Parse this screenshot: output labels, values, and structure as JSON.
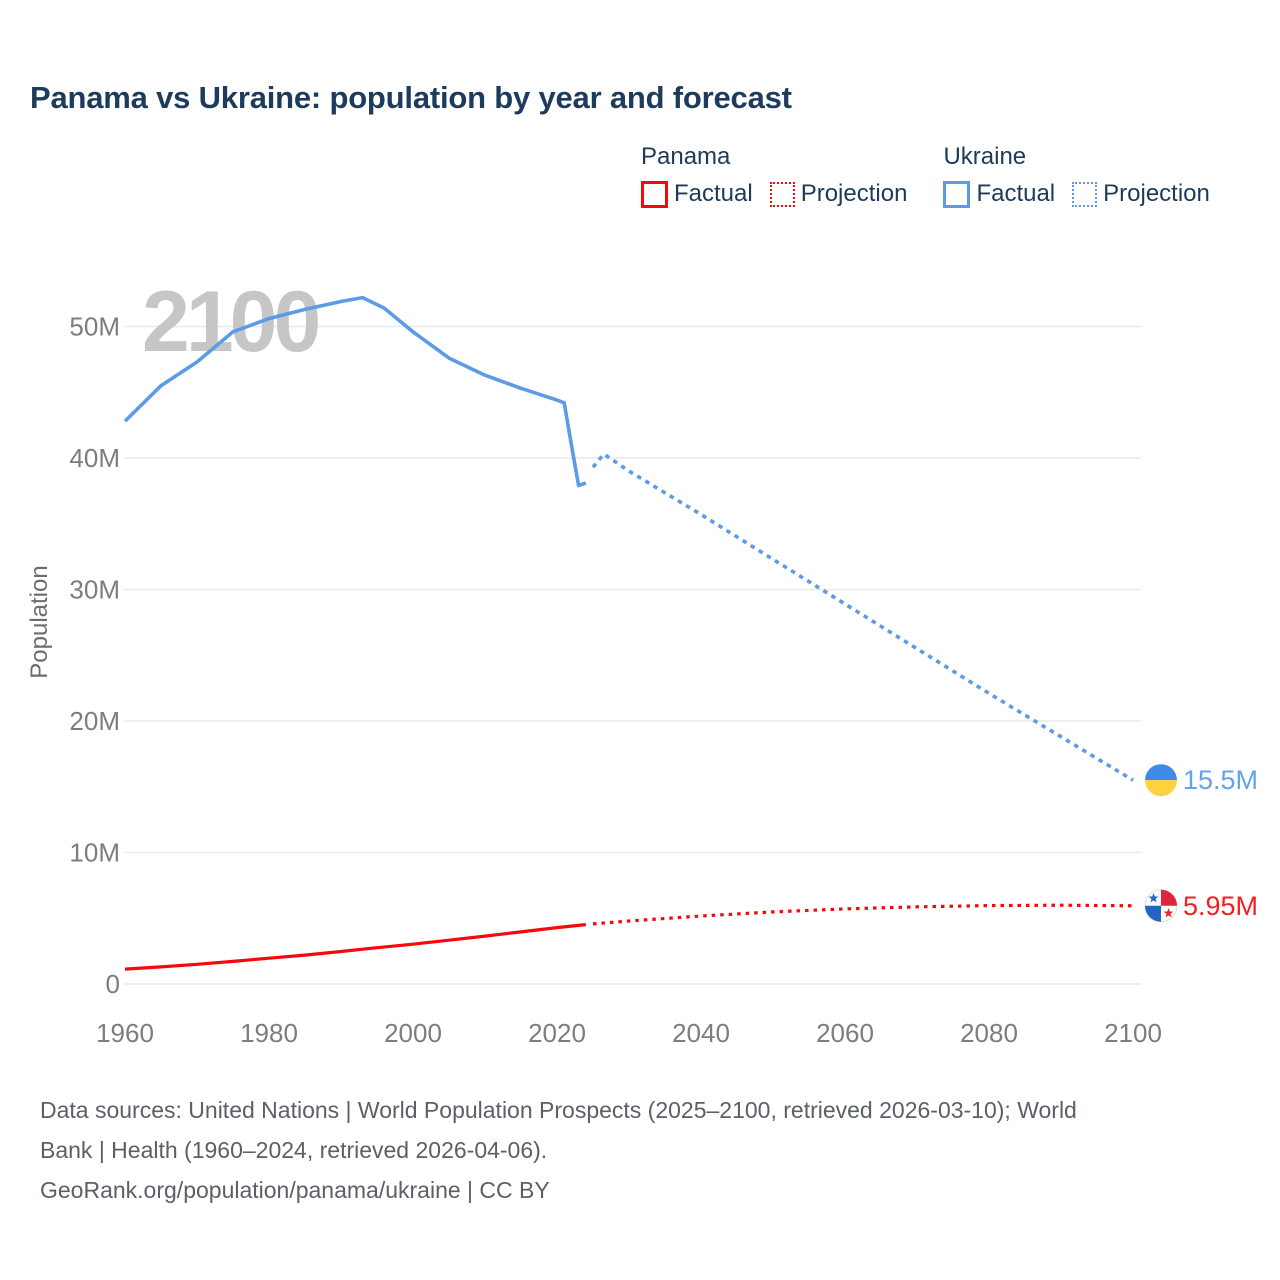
{
  "title": "Panama vs Ukraine: population by year and forecast",
  "legend": {
    "groups": [
      {
        "name": "Panama",
        "color": "#f40a0a",
        "items": [
          {
            "label": "Factual",
            "style": "solid"
          },
          {
            "label": "Projection",
            "style": "dotted"
          }
        ]
      },
      {
        "name": "Ukraine",
        "color": "#5d9be6",
        "items": [
          {
            "label": "Factual",
            "style": "solid"
          },
          {
            "label": "Projection",
            "style": "dotted"
          }
        ]
      }
    ]
  },
  "chart_data": {
    "type": "line",
    "title": "Panama vs Ukraine: population by year and forecast",
    "xlabel": "",
    "ylabel": "Population",
    "watermark": "2100",
    "grid": "horizontal",
    "xlim": [
      1960,
      2100
    ],
    "ylim_millions": [
      0,
      55
    ],
    "x_ticks": [
      1960,
      1980,
      2000,
      2020,
      2040,
      2060,
      2080,
      2100
    ],
    "y_ticks": [
      {
        "value": 0,
        "label": "0"
      },
      {
        "value": 10,
        "label": "10M"
      },
      {
        "value": 20,
        "label": "20M"
      },
      {
        "value": 30,
        "label": "30M"
      },
      {
        "value": 40,
        "label": "40M"
      },
      {
        "value": 50,
        "label": "50M"
      }
    ],
    "units": "millions of people",
    "series": [
      {
        "id": "ukraine-factual",
        "name": "Ukraine Factual",
        "style": "solid",
        "color": "#5d9be6",
        "width": 3.6,
        "points": [
          [
            1960,
            42.8
          ],
          [
            1965,
            45.5
          ],
          [
            1970,
            47.3
          ],
          [
            1975,
            49.6
          ],
          [
            1980,
            50.6
          ],
          [
            1985,
            51.3
          ],
          [
            1990,
            51.9
          ],
          [
            1993,
            52.2
          ],
          [
            1996,
            51.4
          ],
          [
            2000,
            49.6
          ],
          [
            2005,
            47.6
          ],
          [
            2010,
            46.3
          ],
          [
            2015,
            45.3
          ],
          [
            2020,
            44.4
          ],
          [
            2021,
            44.2
          ],
          [
            2022,
            41.0
          ],
          [
            2023,
            37.9
          ],
          [
            2024,
            38.1
          ]
        ]
      },
      {
        "id": "ukraine-projection",
        "name": "Ukraine Projection",
        "style": "dotted",
        "color": "#5d9be6",
        "width": 3.6,
        "dash": "4.5 5",
        "points": [
          [
            2025,
            39.3
          ],
          [
            2026.5,
            40.3
          ],
          [
            2030,
            39.0
          ],
          [
            2040,
            35.7
          ],
          [
            2050,
            32.3
          ],
          [
            2060,
            28.9
          ],
          [
            2070,
            25.5
          ],
          [
            2080,
            22.1
          ],
          [
            2090,
            18.8
          ],
          [
            2100,
            15.5
          ]
        ]
      },
      {
        "id": "panama-factual",
        "name": "Panama Factual",
        "style": "solid",
        "color": "#f40a0a",
        "width": 3.2,
        "points": [
          [
            1960,
            1.13
          ],
          [
            1965,
            1.3
          ],
          [
            1970,
            1.5
          ],
          [
            1975,
            1.72
          ],
          [
            1980,
            1.96
          ],
          [
            1985,
            2.2
          ],
          [
            1990,
            2.47
          ],
          [
            1995,
            2.76
          ],
          [
            2000,
            3.03
          ],
          [
            2005,
            3.33
          ],
          [
            2010,
            3.64
          ],
          [
            2015,
            3.96
          ],
          [
            2020,
            4.29
          ],
          [
            2024,
            4.52
          ]
        ]
      },
      {
        "id": "panama-projection",
        "name": "Panama Projection",
        "style": "dotted",
        "color": "#f40a0a",
        "width": 3.2,
        "dash": "3.5 5",
        "points": [
          [
            2025,
            4.57
          ],
          [
            2030,
            4.79
          ],
          [
            2040,
            5.17
          ],
          [
            2050,
            5.48
          ],
          [
            2060,
            5.71
          ],
          [
            2070,
            5.87
          ],
          [
            2080,
            5.96
          ],
          [
            2090,
            5.99
          ],
          [
            2100,
            5.95
          ]
        ]
      }
    ],
    "end_labels": [
      {
        "series": "ukraine",
        "text": "15.5M",
        "value": 15.5,
        "color": "#62a3ec",
        "flag": "ukraine-flag-icon"
      },
      {
        "series": "panama",
        "text": "5.95M",
        "value": 5.95,
        "color": "#f42020",
        "flag": "panama-flag-icon"
      }
    ],
    "flag_colors": {
      "ukraine_blue": "#4189e6",
      "ukraine_yellow": "#ffd23e",
      "panama_red": "#e2243b",
      "panama_blue": "#2563c4"
    }
  },
  "footer": {
    "lines": [
      "Data sources: United Nations | World Population Prospects (2025–2100, retrieved 2026-03-10); World",
      "Bank | Health (1960–2024, retrieved 2026-04-06).",
      "GeoRank.org/population/panama/ukraine | CC BY"
    ]
  }
}
